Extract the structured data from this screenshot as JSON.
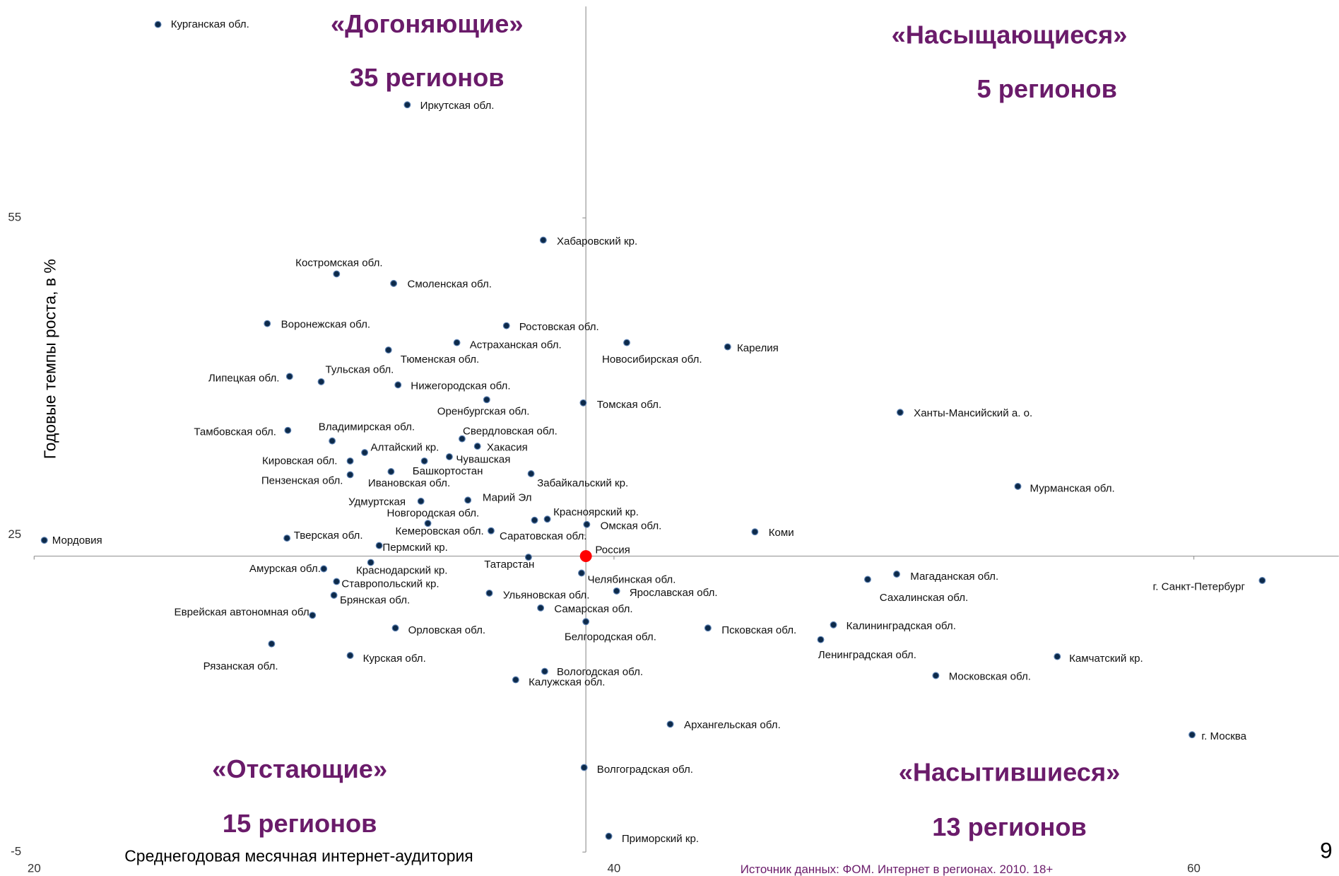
{
  "chart_data": {
    "type": "scatter",
    "ylabel": "Годовые темпы роста, в %",
    "xlabel": "Среднегодовая месячная интернет-аудитория",
    "source": "Источник данных: ФОМ. Интернет в регионах. 2010. 18+",
    "page_number": "9",
    "xlim": [
      20,
      65
    ],
    "ylim": [
      -5,
      75
    ],
    "xticks": [
      20,
      40,
      60
    ],
    "yticks": [
      -5,
      25,
      55
    ],
    "annotations": [
      {
        "title": "«Догоняющие»",
        "count": "35 регионов"
      },
      {
        "title": "«Насыщающиеся»",
        "count": "5 регионов"
      },
      {
        "title": "«Отстающие»",
        "count": "15 регионов"
      },
      {
        "title": "«Насытившиеся»",
        "count": "13 регионов"
      }
    ],
    "series": [
      {
        "color": "#0d2a4a",
        "labels": [
          "Курганская обл.",
          "Иркутская обл.",
          "Хабаровский кр.",
          "Костромская обл.",
          "Смоленская обл.",
          "Воронежская обл.",
          "Ростовская обл.",
          "Астраханская обл.",
          "Новосибирская обл.",
          "Карелия",
          "Тюменская обл.",
          "Липецкая обл.",
          "Тульская обл.",
          "Нижегородская обл.",
          "Оренбургская обл.",
          "Томская обл.",
          "Ханты-Мансийский а. о.",
          "Тамбовская обл.",
          "Владимирская обл.",
          "Свердловская обл.",
          "Хакасия",
          "Алтайский кр.",
          "Чувашская",
          "Кировская обл.",
          "Башкортостан",
          "Ивановская обл.",
          "Пензенская обл.",
          "Забайкальский кр.",
          "Мурманская обл.",
          "Удмуртская",
          "Марий Эл",
          "Красноярский кр.",
          "Новгородская обл.",
          "Омская обл.",
          "Кемеровская обл.",
          "Саратовская обл.",
          "Тверская обл.",
          "Мордовия",
          "Пермский кр.",
          "Татарстан",
          "Амурская обл.",
          "Краснодарский кр.",
          "Челябинская обл.",
          "Ставропольский кр.",
          "Ярославская обл.",
          "Ульяновская обл.",
          "Брянская обл.",
          "Самарская обл.",
          "Еврейская автономная обл.",
          "Белгородская обл.",
          "Орловская обл.",
          "Псковская обл.",
          "Калининградская обл.",
          "Ленинградская обл.",
          "Рязанская обл.",
          "Курская обл.",
          "Камчатский кр.",
          "Вологодская обл.",
          "Московская обл.",
          "Калужская обл.",
          "Архангельская обл.",
          "г. Москва",
          "Волгоградская обл.",
          "Приморский кр.",
          "Магаданская обл.",
          "Сахалинская обл.",
          "г. Санкт-Петербург",
          "Коми"
        ],
        "x": [
          24.27,
          32.87,
          37.56,
          30.43,
          32.4,
          28.04,
          36.29,
          34.58,
          40.44,
          43.92,
          32.22,
          28.81,
          29.9,
          32.55,
          35.61,
          38.94,
          49.87,
          28.75,
          30.28,
          34.76,
          35.29,
          31.4,
          34.32,
          30.9,
          33.46,
          32.31,
          30.9,
          37.14,
          53.93,
          33.34,
          34.96,
          37.7,
          33.58,
          39.06,
          37.26,
          35.76,
          28.72,
          20.35,
          31.9,
          37.05,
          29.99,
          31.61,
          38.88,
          30.43,
          40.09,
          35.7,
          30.34,
          37.47,
          29.6,
          39.03,
          32.46,
          43.24,
          47.57,
          47.13,
          28.19,
          30.9,
          55.29,
          37.61,
          51.1,
          36.61,
          41.94,
          59.94,
          38.97,
          39.82,
          49.75,
          48.75,
          62.36,
          44.86
        ],
        "y": [
          73.3,
          65.7,
          52.9,
          49.7,
          48.8,
          45.0,
          44.8,
          43.2,
          43.2,
          42.8,
          42.5,
          40.0,
          39.5,
          39.2,
          37.8,
          37.5,
          36.6,
          34.9,
          33.9,
          34.1,
          33.4,
          32.8,
          32.4,
          32.0,
          32.0,
          31.0,
          30.7,
          30.8,
          29.6,
          28.2,
          28.3,
          26.5,
          26.1,
          26.0,
          26.4,
          25.4,
          24.7,
          24.5,
          24.0,
          22.9,
          21.8,
          22.4,
          21.4,
          20.6,
          19.7,
          19.5,
          19.3,
          18.1,
          17.4,
          16.8,
          16.2,
          16.2,
          16.5,
          15.1,
          14.7,
          13.6,
          13.5,
          12.1,
          11.7,
          11.3,
          7.1,
          6.1,
          3.0,
          -3.5,
          21.3,
          20.8,
          20.7,
          25.3
        ]
      },
      {
        "color": "#ff0000",
        "labels": [
          "Россия"
        ],
        "x": [
          39.03
        ],
        "y": [
          23.0
        ]
      }
    ]
  }
}
